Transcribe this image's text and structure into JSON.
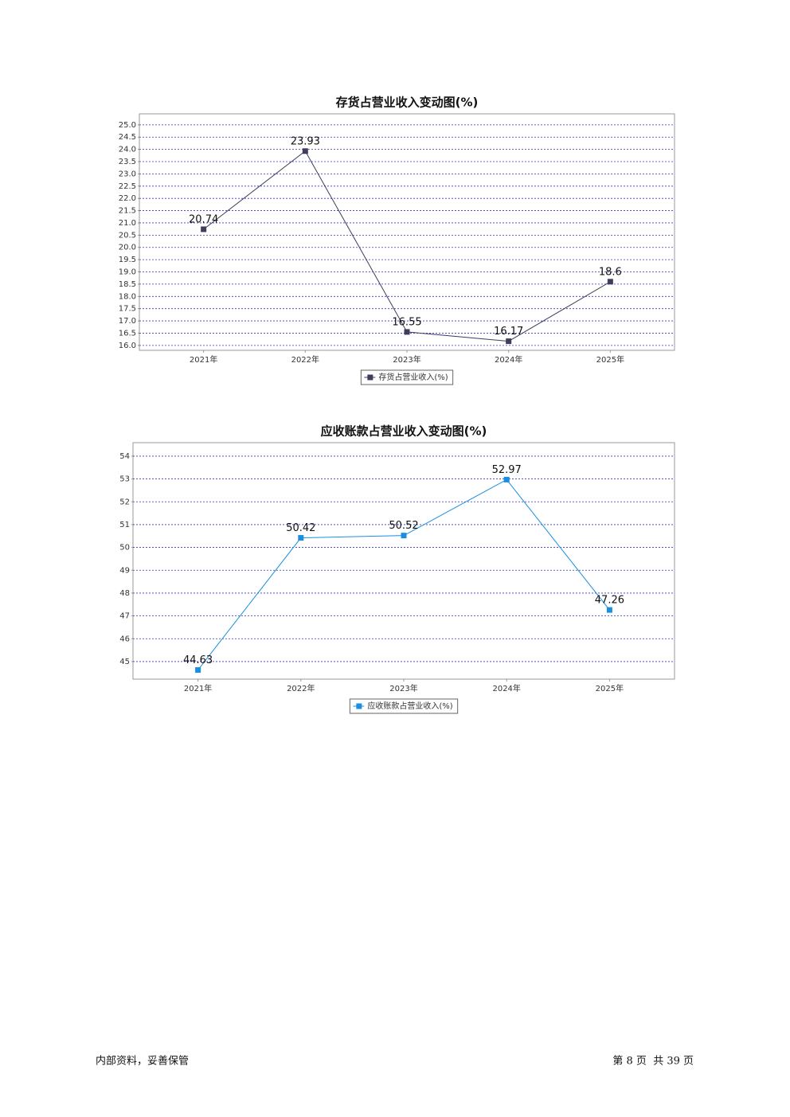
{
  "chart_data": [
    {
      "type": "line",
      "title": "存货占营业收入变动图(%)",
      "categories": [
        "2021年",
        "2022年",
        "2023年",
        "2024年",
        "2025年"
      ],
      "series": [
        {
          "name": "存货占营业收入(%)",
          "color": "#3d3d5c",
          "values": [
            20.74,
            23.93,
            16.55,
            16.17,
            18.6
          ]
        }
      ],
      "ylim": [
        15.8,
        25.45
      ],
      "yticks": [
        {
          "value": 16,
          "label": "16.0"
        },
        16.5,
        {
          "value": 17,
          "label": "17.0"
        },
        17.5,
        {
          "value": 18,
          "label": "18.0"
        },
        18.5,
        {
          "value": 19,
          "label": "19.0"
        },
        19.5,
        {
          "value": 20,
          "label": "20.0"
        },
        20.5,
        {
          "value": 21,
          "label": "21.0"
        },
        21.5,
        {
          "value": 22,
          "label": "22.0"
        },
        22.5,
        {
          "value": 23,
          "label": "23.0"
        },
        23.5,
        {
          "value": 24,
          "label": "24.0"
        },
        24.5,
        {
          "value": 25,
          "label": "25.0"
        }
      ],
      "grid": true
    },
    {
      "type": "line",
      "title": "应收账款占营业收入变动图(%)",
      "categories": [
        "2021年",
        "2022年",
        "2023年",
        "2024年",
        "2025年"
      ],
      "series": [
        {
          "name": "应收账款占营业收入(%)",
          "color": "#1a8fe0",
          "values": [
            44.63,
            50.42,
            50.52,
            52.97,
            47.26
          ]
        }
      ],
      "ylim": [
        44.23,
        54.59
      ],
      "yticks": [
        45,
        46,
        47,
        48,
        49,
        50,
        51,
        52,
        53,
        54
      ],
      "grid": true
    }
  ],
  "footer": {
    "left": "内部资料，妥善保管",
    "right": "第 8 页  共 39 页"
  }
}
